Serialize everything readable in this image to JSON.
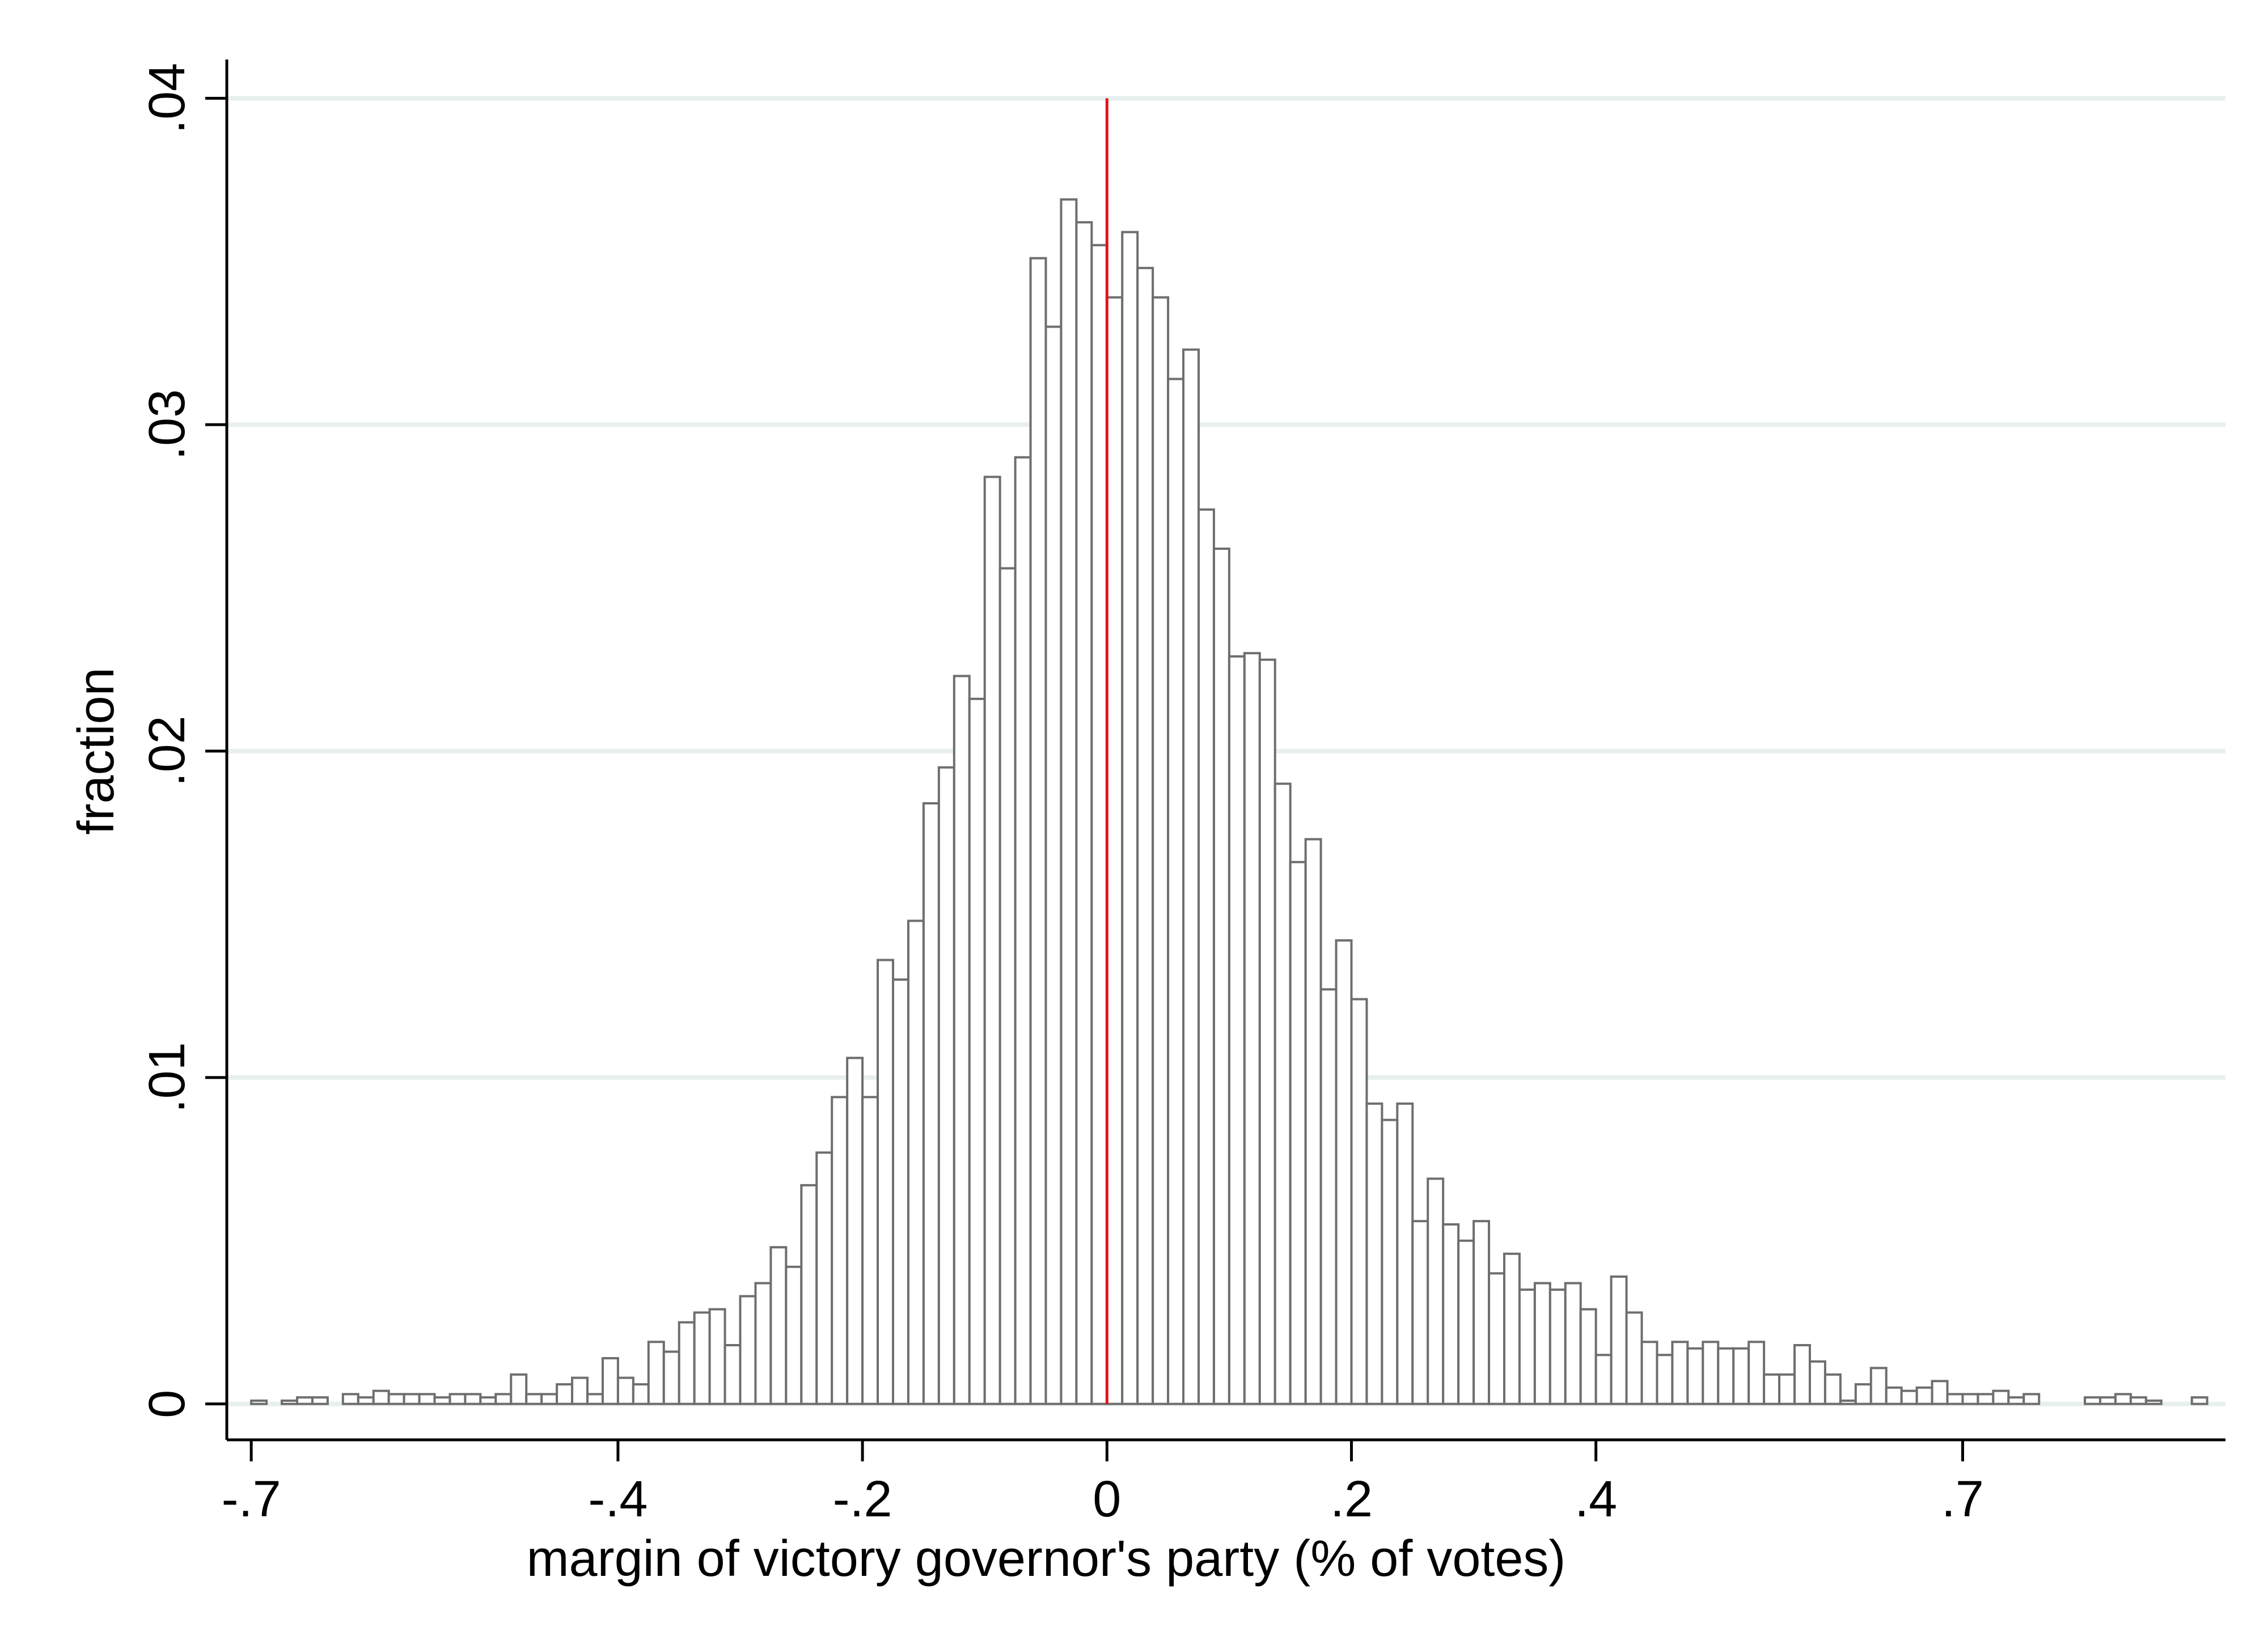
{
  "chart_data": {
    "type": "bar",
    "title": "",
    "xlabel": "margin of victory governor's party (% of votes)",
    "ylabel": "fraction",
    "xlim": [
      -0.72,
      0.915
    ],
    "ylim": [
      -0.0011,
      0.0411
    ],
    "x_ticks": [
      -0.7,
      -0.4,
      -0.2,
      0,
      0.2,
      0.4,
      0.7
    ],
    "x_tick_labels": [
      "-.7",
      "-.4",
      "-.2",
      "0",
      ".2",
      ".4",
      ".7"
    ],
    "y_ticks": [
      0,
      0.01,
      0.02,
      0.03,
      0.04
    ],
    "y_tick_labels": [
      "0",
      ".01",
      ".02",
      ".03",
      ".04"
    ],
    "grid": "horizontal",
    "legend": "none",
    "reference_line": {
      "x": 0,
      "color": "#e8101a"
    },
    "bin_width": 0.0125,
    "bin_start": -0.725,
    "values": [
      0,
      0,
      0.0001,
      0,
      0.0001,
      0.0002,
      0.0002,
      0,
      0.0003,
      0.0002,
      0.0004,
      0.0003,
      0.0003,
      0.0003,
      0.0002,
      0.0003,
      0.0003,
      0.0002,
      0.0003,
      0.0009,
      0.0003,
      0.0003,
      0.0006,
      0.0008,
      0.0003,
      0.0014,
      0.0008,
      0.0006,
      0.0019,
      0.0016,
      0.0025,
      0.0028,
      0.0029,
      0.0018,
      0.0033,
      0.0037,
      0.0048,
      0.0042,
      0.0067,
      0.0077,
      0.0094,
      0.0106,
      0.0094,
      0.0136,
      0.013,
      0.0148,
      0.0184,
      0.0195,
      0.0223,
      0.0216,
      0.0284,
      0.0256,
      0.029,
      0.0351,
      0.033,
      0.0369,
      0.0362,
      0.0355,
      0.0339,
      0.0359,
      0.0348,
      0.0339,
      0.0314,
      0.0323,
      0.0274,
      0.0262,
      0.0229,
      0.023,
      0.0228,
      0.019,
      0.0166,
      0.0173,
      0.0127,
      0.0142,
      0.0124,
      0.0092,
      0.0087,
      0.0092,
      0.0056,
      0.0069,
      0.0055,
      0.005,
      0.0056,
      0.004,
      0.0046,
      0.0035,
      0.0037,
      0.0035,
      0.0037,
      0.0029,
      0.0015,
      0.0039,
      0.0028,
      0.0019,
      0.0015,
      0.0019,
      0.0017,
      0.0019,
      0.0017,
      0.0017,
      0.0019,
      0.0009,
      0.0009,
      0.0018,
      0.0013,
      0.0009,
      0.0001,
      0.0006,
      0.0011,
      0.0005,
      0.0004,
      0.0005,
      0.0007,
      0.0003,
      0.0003,
      0.0003,
      0.0004,
      0.0002,
      0.0003,
      0,
      0,
      0,
      0.0002,
      0.0002,
      0.0003,
      0.0002,
      0.0001,
      0,
      0,
      0.0002
    ]
  }
}
